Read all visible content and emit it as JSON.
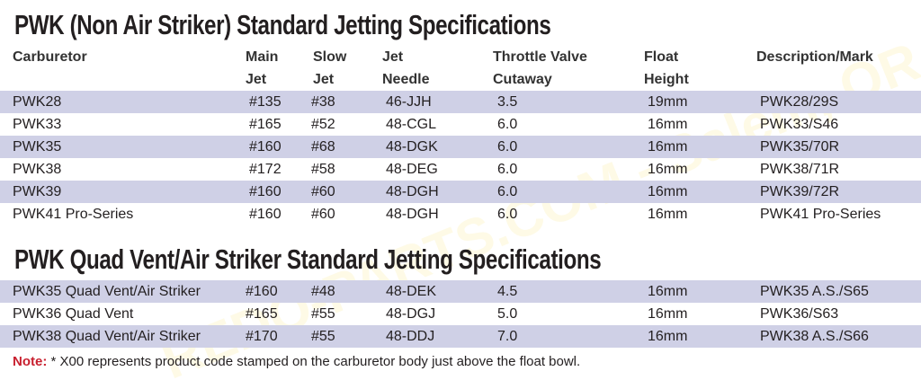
{
  "watermark": "REDO-PARTS.COM - Salem, OR",
  "table1": {
    "title": "PWK (Non Air Striker) Standard Jetting Specifications",
    "headers": [
      {
        "l1": "Carburetor",
        "l2": ""
      },
      {
        "l1": "Main",
        "l2": "Jet"
      },
      {
        "l1": "Slow",
        "l2": "Jet"
      },
      {
        "l1": "Jet",
        "l2": "Needle"
      },
      {
        "l1": "Throttle Valve",
        "l2": "Cutaway"
      },
      {
        "l1": "Float",
        "l2": "Height"
      },
      {
        "l1": "Description/Mark",
        "l2": ""
      }
    ],
    "rows": [
      [
        "PWK28",
        "#135",
        "#38",
        "46-JJH",
        "3.5",
        "19mm",
        "PWK28/29S"
      ],
      [
        "PWK33",
        "#165",
        "#52",
        "48-CGL",
        "6.0",
        "16mm",
        "PWK33/S46"
      ],
      [
        "PWK35",
        "#160",
        "#68",
        "48-DGK",
        "6.0",
        "16mm",
        "PWK35/70R"
      ],
      [
        "PWK38",
        "#172",
        "#58",
        "48-DEG",
        "6.0",
        "16mm",
        "PWK38/71R"
      ],
      [
        "PWK39",
        "#160",
        "#60",
        "48-DGH",
        "6.0",
        "16mm",
        "PWK39/72R"
      ],
      [
        "PWK41 Pro-Series",
        "#160",
        "#60",
        "48-DGH",
        "6.0",
        "16mm",
        "PWK41 Pro-Series"
      ]
    ]
  },
  "table2": {
    "title": "PWK Quad Vent/Air Striker Standard Jetting Specifications",
    "rows": [
      [
        "PWK35 Quad Vent/Air Striker",
        "#160",
        "#48",
        "48-DEK",
        "4.5",
        "16mm",
        "PWK35 A.S./S65"
      ],
      [
        "PWK36 Quad Vent",
        "#165",
        "#55",
        "48-DGJ",
        "5.0",
        "16mm",
        "PWK36/S63"
      ],
      [
        "PWK38 Quad Vent/Air Striker",
        "#170",
        "#55",
        "48-DDJ",
        "7.0",
        "16mm",
        "PWK38 A.S./S66"
      ]
    ]
  },
  "note": {
    "label": "Note:",
    "text": " * X00 represents product code stamped on the carburetor body just above the float bowl."
  },
  "colors": {
    "row_shade": "#cfd0e6",
    "note_label": "#c8202f"
  }
}
